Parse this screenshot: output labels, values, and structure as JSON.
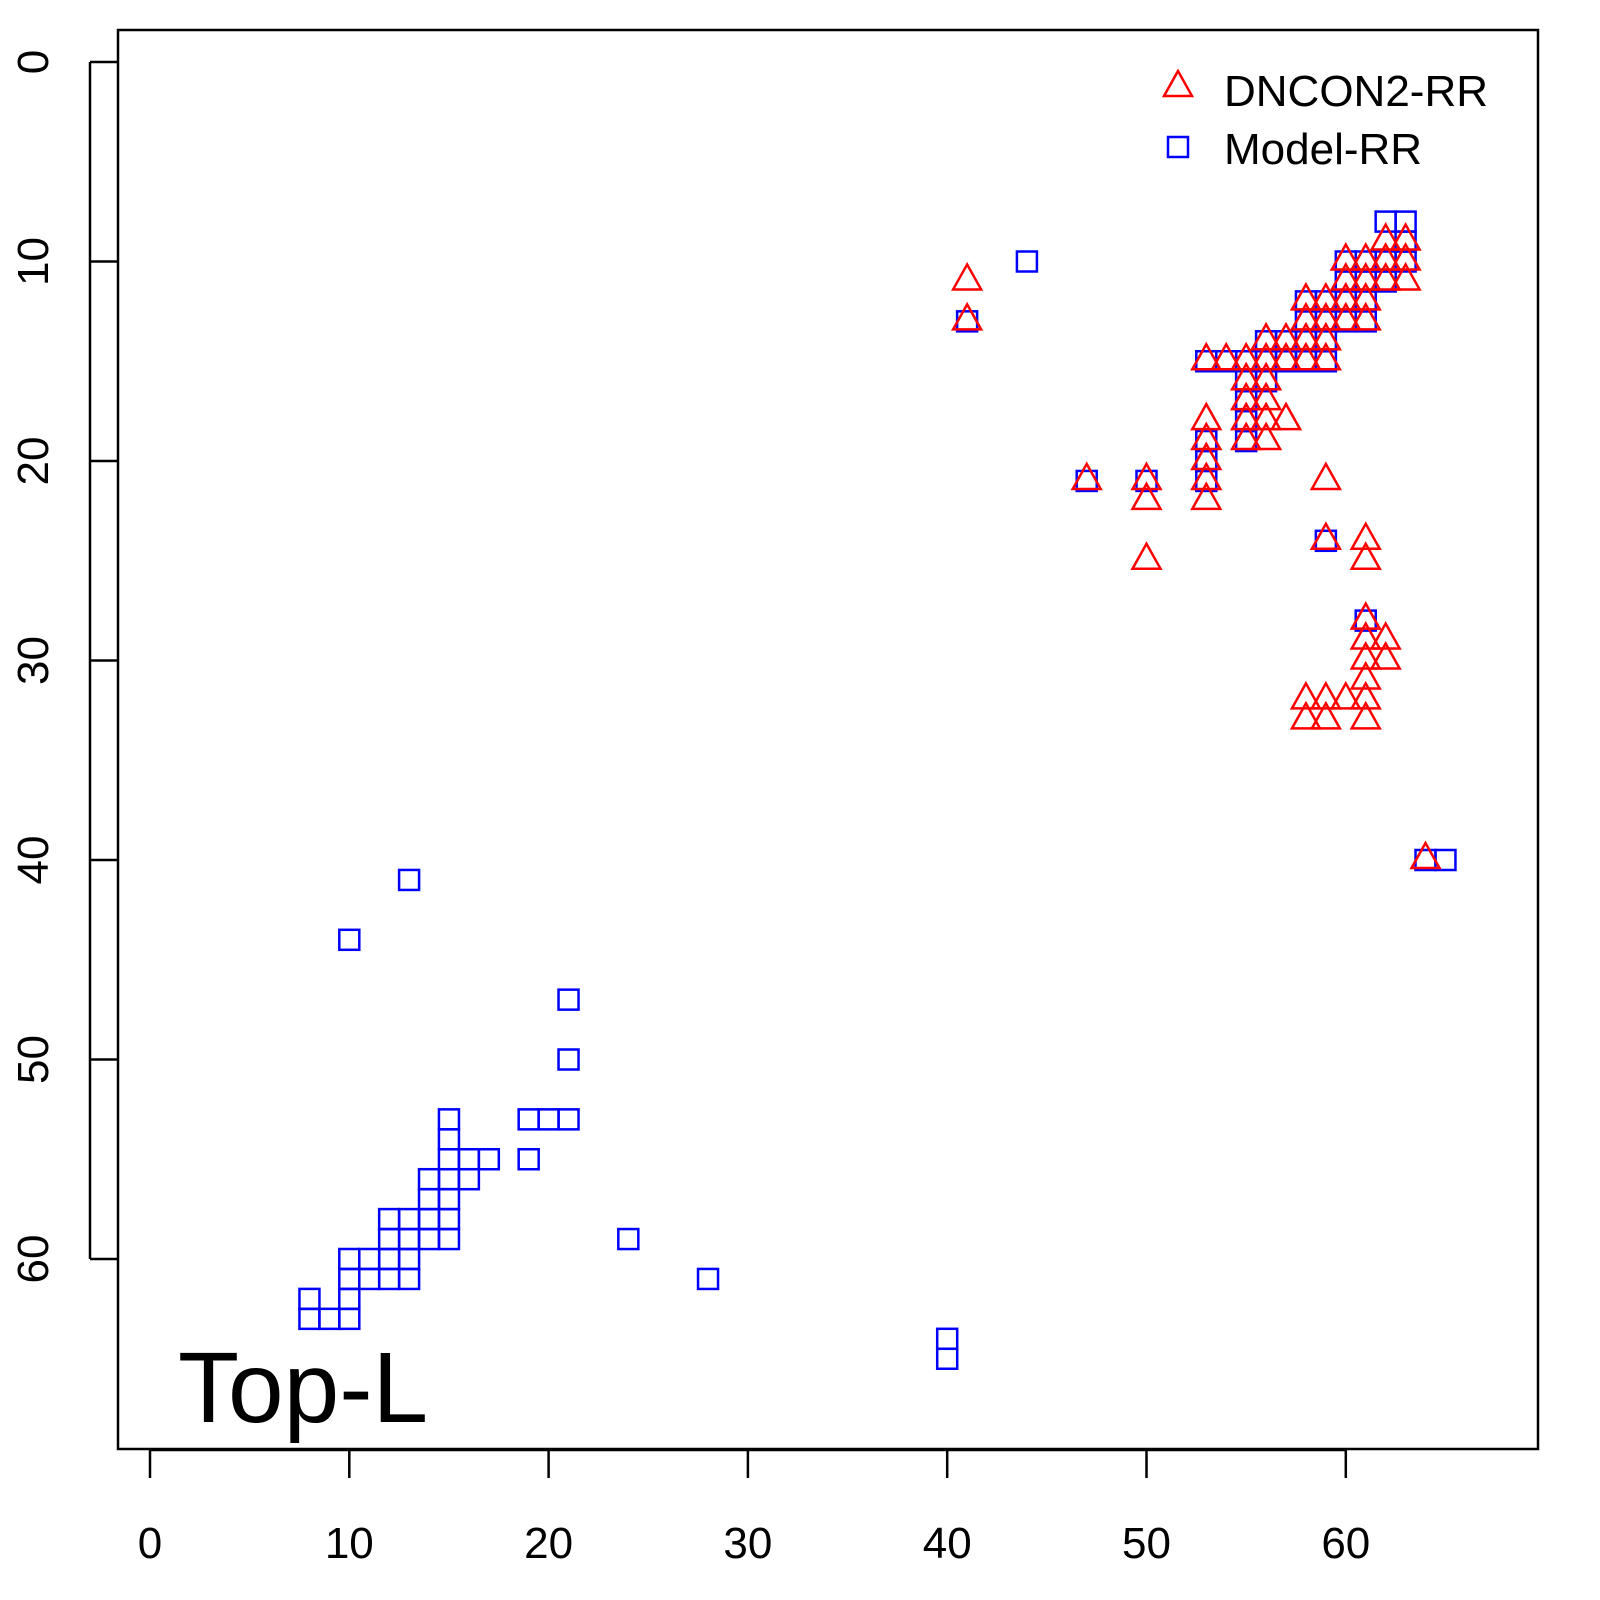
{
  "chart_data": {
    "type": "scatter",
    "title": "",
    "annotation": "Top-L",
    "xlabel": "",
    "ylabel": "",
    "xlim": [
      -1.6,
      69.7
    ],
    "ylim": [
      -1.6,
      69.6
    ],
    "y_reversed": true,
    "x_ticks": [
      0,
      10,
      20,
      30,
      40,
      50,
      60
    ],
    "y_ticks": [
      0,
      10,
      20,
      30,
      40,
      50,
      60
    ],
    "grid": false,
    "legend_position": "top-right",
    "series": [
      {
        "name": "DNCON2-RR",
        "marker": "triangle",
        "color": "#ff0000",
        "points": [
          [
            41,
            11
          ],
          [
            41,
            13
          ],
          [
            47,
            21
          ],
          [
            50,
            21
          ],
          [
            50,
            22
          ],
          [
            50,
            25
          ],
          [
            53,
            15
          ],
          [
            54,
            15
          ],
          [
            55,
            15
          ],
          [
            56,
            15
          ],
          [
            57,
            15
          ],
          [
            58,
            15
          ],
          [
            59,
            15
          ],
          [
            55,
            16
          ],
          [
            56,
            16
          ],
          [
            55,
            17
          ],
          [
            56,
            17
          ],
          [
            55,
            18
          ],
          [
            56,
            18
          ],
          [
            57,
            18
          ],
          [
            53,
            18
          ],
          [
            53,
            19
          ],
          [
            53,
            20
          ],
          [
            53,
            21
          ],
          [
            53,
            22
          ],
          [
            55,
            19
          ],
          [
            56,
            19
          ],
          [
            56,
            14
          ],
          [
            57,
            14
          ],
          [
            58,
            14
          ],
          [
            59,
            14
          ],
          [
            58,
            13
          ],
          [
            59,
            13
          ],
          [
            58,
            12
          ],
          [
            59,
            12
          ],
          [
            60,
            12
          ],
          [
            61,
            12
          ],
          [
            60,
            11
          ],
          [
            61,
            11
          ],
          [
            62,
            11
          ],
          [
            63,
            11
          ],
          [
            60,
            10
          ],
          [
            61,
            10
          ],
          [
            62,
            10
          ],
          [
            63,
            10
          ],
          [
            62,
            9
          ],
          [
            63,
            9
          ],
          [
            60,
            13
          ],
          [
            61,
            13
          ],
          [
            59,
            21
          ],
          [
            59,
            24
          ],
          [
            61,
            24
          ],
          [
            61,
            25
          ],
          [
            61,
            28
          ],
          [
            61,
            29
          ],
          [
            62,
            29
          ],
          [
            61,
            30
          ],
          [
            62,
            30
          ],
          [
            61,
            31
          ],
          [
            58,
            32
          ],
          [
            59,
            32
          ],
          [
            60,
            32
          ],
          [
            61,
            32
          ],
          [
            58,
            33
          ],
          [
            59,
            33
          ],
          [
            61,
            33
          ],
          [
            64,
            40
          ]
        ]
      },
      {
        "name": "Model-RR",
        "marker": "square",
        "color": "#0000ff",
        "points": [
          [
            62,
            8
          ],
          [
            63,
            8
          ],
          [
            63,
            9
          ],
          [
            60,
            10
          ],
          [
            61,
            10
          ],
          [
            62,
            10
          ],
          [
            63,
            10
          ],
          [
            60,
            11
          ],
          [
            61,
            11
          ],
          [
            62,
            11
          ],
          [
            60,
            12
          ],
          [
            61,
            12
          ],
          [
            58,
            12
          ],
          [
            59,
            12
          ],
          [
            58,
            13
          ],
          [
            59,
            13
          ],
          [
            60,
            13
          ],
          [
            61,
            13
          ],
          [
            56,
            14
          ],
          [
            57,
            14
          ],
          [
            58,
            14
          ],
          [
            59,
            14
          ],
          [
            53,
            15
          ],
          [
            54,
            15
          ],
          [
            55,
            15
          ],
          [
            56,
            15
          ],
          [
            57,
            15
          ],
          [
            58,
            15
          ],
          [
            59,
            15
          ],
          [
            55,
            16
          ],
          [
            56,
            16
          ],
          [
            55,
            17
          ],
          [
            55,
            18
          ],
          [
            55,
            19
          ],
          [
            53,
            19
          ],
          [
            53,
            20
          ],
          [
            53,
            21
          ],
          [
            44,
            10
          ],
          [
            41,
            13
          ],
          [
            47,
            21
          ],
          [
            50,
            21
          ],
          [
            59,
            24
          ],
          [
            61,
            28
          ],
          [
            64,
            40
          ],
          [
            65,
            40
          ],
          [
            15,
            53
          ],
          [
            15,
            54
          ],
          [
            15,
            55
          ],
          [
            16,
            55
          ],
          [
            17,
            55
          ],
          [
            14,
            56
          ],
          [
            15,
            56
          ],
          [
            16,
            56
          ],
          [
            14,
            57
          ],
          [
            15,
            57
          ],
          [
            12,
            58
          ],
          [
            13,
            58
          ],
          [
            14,
            58
          ],
          [
            15,
            58
          ],
          [
            12,
            59
          ],
          [
            13,
            59
          ],
          [
            14,
            59
          ],
          [
            15,
            59
          ],
          [
            10,
            60
          ],
          [
            11,
            60
          ],
          [
            12,
            60
          ],
          [
            13,
            60
          ],
          [
            10,
            61
          ],
          [
            11,
            61
          ],
          [
            12,
            61
          ],
          [
            13,
            61
          ],
          [
            8,
            62
          ],
          [
            10,
            62
          ],
          [
            8,
            63
          ],
          [
            9,
            63
          ],
          [
            10,
            63
          ],
          [
            13,
            41
          ],
          [
            10,
            44
          ],
          [
            21,
            47
          ],
          [
            21,
            50
          ],
          [
            19,
            53
          ],
          [
            20,
            53
          ],
          [
            21,
            53
          ],
          [
            19,
            55
          ],
          [
            24,
            59
          ],
          [
            28,
            61
          ],
          [
            40,
            64
          ],
          [
            40,
            65
          ]
        ]
      }
    ]
  }
}
